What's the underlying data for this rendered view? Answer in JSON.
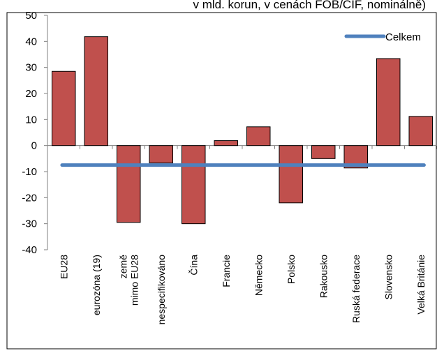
{
  "chart_data": {
    "type": "bar",
    "subtitle": "v mld. korun, v cenách FOB/CIF, nominálně)",
    "categories": [
      "EU28",
      "eurozóna (19)",
      "země mimo EU28",
      "nespecifikováno",
      "Čína",
      "Francie",
      "Německo",
      "Polsko",
      "Rakousko",
      "Ruská federace",
      "Slovensko",
      "Velká Británie"
    ],
    "category_lines": [
      [
        "EU28"
      ],
      [
        "eurozóna (19)"
      ],
      [
        "země",
        "mimo EU28"
      ],
      [
        "nespecifikováno"
      ],
      [
        "Čína"
      ],
      [
        "Francie"
      ],
      [
        "Německo"
      ],
      [
        "Polsko"
      ],
      [
        "Rakousko"
      ],
      [
        "Ruská federace"
      ],
      [
        "Slovensko"
      ],
      [
        "Velká Británie"
      ]
    ],
    "series": [
      {
        "type": "bar",
        "values": [
          28.5,
          41.8,
          -29.5,
          -6.7,
          -30.0,
          1.9,
          7.2,
          -22.0,
          -5.0,
          -8.6,
          33.4,
          11.2
        ],
        "color": "#c0504d"
      },
      {
        "type": "line",
        "name": "Celkem",
        "value": -7.5,
        "color": "#4f81bd"
      }
    ],
    "ylim": [
      -40,
      50
    ],
    "yticks": [
      -40,
      -30,
      -20,
      -10,
      0,
      10,
      20,
      30,
      40,
      50
    ],
    "legend": "top-right",
    "grid": false
  }
}
